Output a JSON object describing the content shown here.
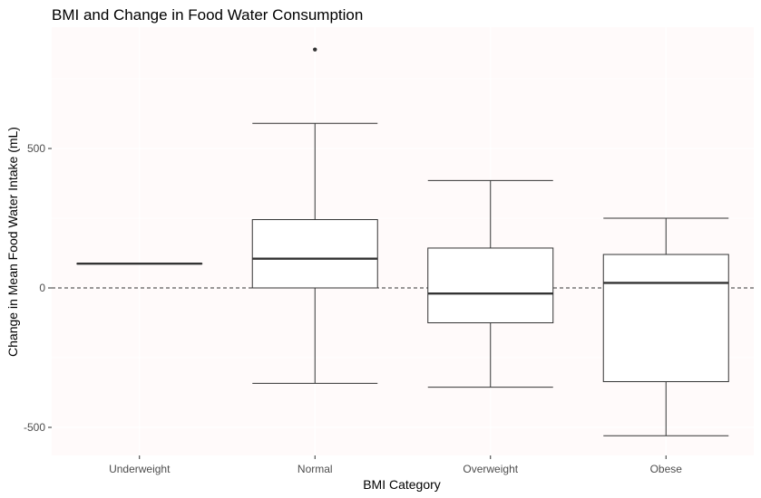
{
  "chart_data": {
    "type": "boxplot",
    "title": "BMI and Change in Food Water Consumption",
    "xlabel": "BMI Category",
    "ylabel": "Change in Mean Food Water Intake (mL)",
    "categories": [
      "Underweight",
      "Normal",
      "Overweight",
      "Obese"
    ],
    "ylim": [
      -600,
      920
    ],
    "yticks": [
      -500,
      0,
      500
    ],
    "ytick_labels": [
      "-500",
      "0",
      "500"
    ],
    "reference_line": {
      "y": 0,
      "style": "dashed"
    },
    "boxes": [
      {
        "category": "Underweight",
        "min": 87,
        "q1": 87,
        "median": 87,
        "q3": 87,
        "max": 87,
        "outliers": []
      },
      {
        "category": "Normal",
        "min": -342,
        "q1": 0,
        "median": 105,
        "q3": 245,
        "max": 590,
        "outliers": [
          855
        ]
      },
      {
        "category": "Overweight",
        "min": -356,
        "q1": -125,
        "median": -20,
        "q3": 143,
        "max": 385,
        "outliers": []
      },
      {
        "category": "Obese",
        "min": -530,
        "q1": -336,
        "median": 18,
        "q3": 120,
        "max": 250,
        "outliers": []
      }
    ],
    "grid": true,
    "legend": "none",
    "colors": {
      "panel_background": "#fffafa",
      "box_fill": "#ffffff",
      "box_line": "#333333",
      "grid": "#ffffff"
    }
  }
}
